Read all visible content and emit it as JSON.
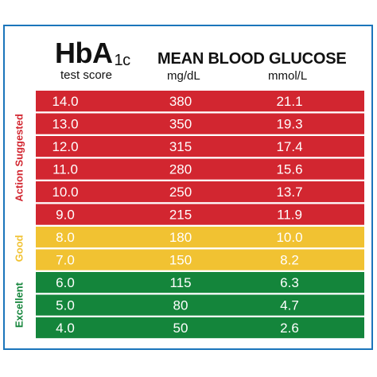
{
  "chart_data": {
    "type": "table",
    "title_main": "HbA",
    "title_sub": "1c",
    "columns": [
      {
        "header": "test score"
      },
      {
        "header": "MEAN BLOOD GLUCOSE",
        "unit": "mg/dL"
      },
      {
        "unit": "mmol/L"
      }
    ],
    "rows": [
      {
        "hba1c": "14.0",
        "mgdl": "380",
        "mmol": "21.1",
        "category": "Action Suggested"
      },
      {
        "hba1c": "13.0",
        "mgdl": "350",
        "mmol": "19.3",
        "category": "Action Suggested"
      },
      {
        "hba1c": "12.0",
        "mgdl": "315",
        "mmol": "17.4",
        "category": "Action Suggested"
      },
      {
        "hba1c": "11.0",
        "mgdl": "280",
        "mmol": "15.6",
        "category": "Action Suggested"
      },
      {
        "hba1c": "10.0",
        "mgdl": "250",
        "mmol": "13.7",
        "category": "Action Suggested"
      },
      {
        "hba1c": "9.0",
        "mgdl": "215",
        "mmol": "11.9",
        "category": "Action Suggested"
      },
      {
        "hba1c": "8.0",
        "mgdl": "180",
        "mmol": "10.0",
        "category": "Good"
      },
      {
        "hba1c": "7.0",
        "mgdl": "150",
        "mmol": "8.2",
        "category": "Good"
      },
      {
        "hba1c": "6.0",
        "mgdl": "115",
        "mmol": "6.3",
        "category": "Excellent"
      },
      {
        "hba1c": "5.0",
        "mgdl": "80",
        "mmol": "4.7",
        "category": "Excellent"
      },
      {
        "hba1c": "4.0",
        "mgdl": "50",
        "mmol": "2.6",
        "category": "Excellent"
      }
    ],
    "categories": [
      {
        "name": "Action Suggested",
        "color": "#d22630"
      },
      {
        "name": "Good",
        "color": "#f1c232"
      },
      {
        "name": "Excellent",
        "color": "#14853b"
      }
    ]
  },
  "colors": {
    "border": "#1b75bb",
    "text": "#111111",
    "cell_text": "#ffffff"
  }
}
